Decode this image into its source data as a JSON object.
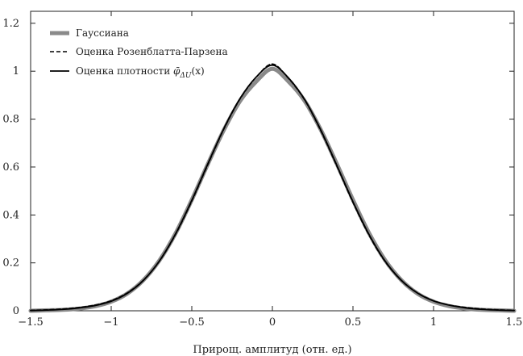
{
  "chart_data": {
    "type": "line",
    "title": "",
    "xlabel": "Прирощ. амплитуд (отн. ед.)",
    "ylabel": "",
    "xlim": [
      -1.5,
      1.5
    ],
    "ylim": [
      0,
      1.25
    ],
    "x_ticks": [
      -1.5,
      -1,
      -0.5,
      0,
      0.5,
      1,
      1.5
    ],
    "x_tick_labels": [
      "−1.5",
      "−1",
      "−0.5",
      "0",
      "0.5",
      "1",
      "1.5"
    ],
    "y_ticks": [
      0,
      0.2,
      0.4,
      0.6,
      0.8,
      1,
      1.2
    ],
    "y_tick_labels": [
      "0",
      "0.2",
      "0.4",
      "0.6",
      "0.8",
      "1",
      "1.2"
    ],
    "grid": false,
    "legend_position": "top-left",
    "series": [
      {
        "name": "Гауссиана",
        "style": "thick-solid",
        "color": "#8a8a8a",
        "x": [
          -1.5,
          -1.4,
          -1.3,
          -1.2,
          -1.1,
          -1.0,
          -0.9,
          -0.8,
          -0.7,
          -0.6,
          -0.5,
          -0.4,
          -0.3,
          -0.2,
          -0.1,
          0.0,
          0.1,
          0.2,
          0.3,
          0.4,
          0.5,
          0.6,
          0.7,
          0.8,
          0.9,
          1.0,
          1.1,
          1.2,
          1.3,
          1.4,
          1.5
        ],
        "y": [
          0.0,
          0.002,
          0.004,
          0.009,
          0.019,
          0.038,
          0.072,
          0.128,
          0.211,
          0.324,
          0.463,
          0.613,
          0.756,
          0.876,
          0.957,
          1.01,
          0.957,
          0.876,
          0.756,
          0.613,
          0.463,
          0.324,
          0.211,
          0.128,
          0.072,
          0.038,
          0.019,
          0.009,
          0.004,
          0.002,
          0.0
        ]
      },
      {
        "name": "Оценка Розенблатта-Парзена",
        "style": "dashed",
        "color": "#000000",
        "x": [
          -1.5,
          -1.4,
          -1.3,
          -1.2,
          -1.1,
          -1.0,
          -0.9,
          -0.8,
          -0.7,
          -0.6,
          -0.5,
          -0.4,
          -0.3,
          -0.2,
          -0.1,
          0.0,
          0.1,
          0.2,
          0.3,
          0.4,
          0.5,
          0.6,
          0.7,
          0.8,
          0.9,
          1.0,
          1.1,
          1.2,
          1.3,
          1.4,
          1.5
        ],
        "y": [
          0.002,
          0.004,
          0.008,
          0.014,
          0.024,
          0.042,
          0.075,
          0.128,
          0.208,
          0.32,
          0.458,
          0.611,
          0.76,
          0.885,
          0.975,
          1.03,
          0.97,
          0.88,
          0.752,
          0.604,
          0.452,
          0.315,
          0.205,
          0.127,
          0.075,
          0.042,
          0.024,
          0.014,
          0.008,
          0.004,
          0.002
        ]
      },
      {
        "name": "Оценка плотности φ̄ΔU(x)",
        "style": "solid",
        "color": "#000000",
        "x": [
          -1.5,
          -1.4,
          -1.3,
          -1.2,
          -1.1,
          -1.0,
          -0.9,
          -0.8,
          -0.7,
          -0.6,
          -0.5,
          -0.4,
          -0.3,
          -0.2,
          -0.1,
          0.0,
          0.1,
          0.2,
          0.3,
          0.4,
          0.5,
          0.6,
          0.7,
          0.8,
          0.9,
          1.0,
          1.1,
          1.2,
          1.3,
          1.4,
          1.5
        ],
        "y": [
          0.001,
          0.003,
          0.006,
          0.012,
          0.022,
          0.04,
          0.073,
          0.127,
          0.209,
          0.322,
          0.461,
          0.614,
          0.762,
          0.887,
          0.976,
          1.025,
          0.972,
          0.882,
          0.755,
          0.607,
          0.455,
          0.318,
          0.207,
          0.127,
          0.074,
          0.041,
          0.023,
          0.012,
          0.006,
          0.003,
          0.001
        ]
      }
    ]
  },
  "legend_labels": {
    "gauss": "Гауссиана",
    "parzen": "Оценка Розенблатта-Парзена",
    "density_prefix": "Оценка плотности ",
    "density_symbol": "φ̄",
    "density_subscript": "ΔU",
    "density_arg": "(x)"
  }
}
